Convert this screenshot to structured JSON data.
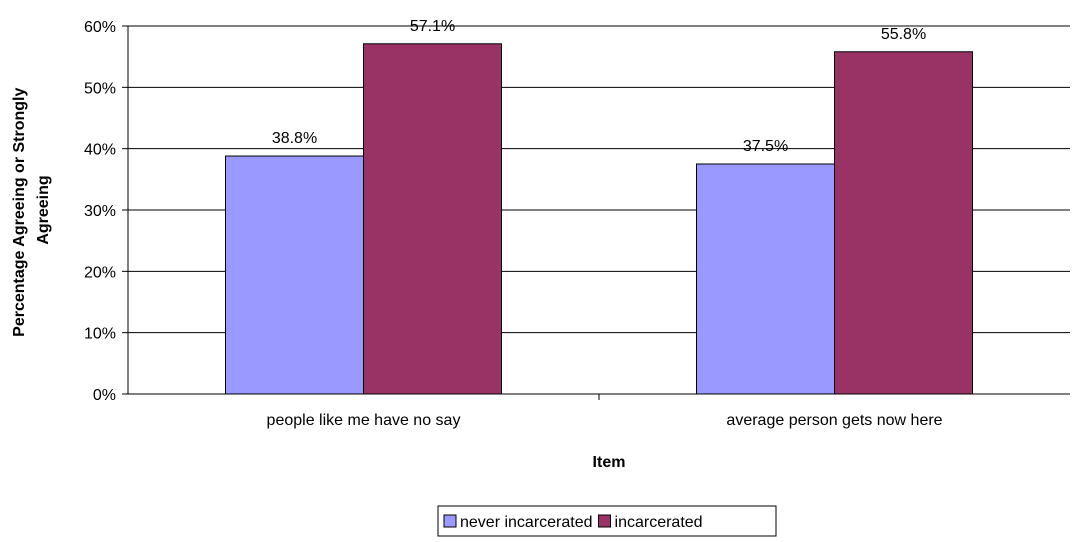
{
  "chart_data": {
    "type": "bar",
    "title": "",
    "xlabel": "Item",
    "ylabel_lines": [
      "Percentage Agreeing or Strongly",
      "Agreeing"
    ],
    "ylim": [
      0,
      60
    ],
    "yticks": [
      0,
      10,
      20,
      30,
      40,
      50,
      60
    ],
    "ytick_format": "{v}%",
    "grid": true,
    "legend_position": "bottom",
    "categories": [
      "people like me have no say",
      "average person gets now here"
    ],
    "series": [
      {
        "name": "never incarcerated",
        "color": "#9999ff",
        "values": [
          38.8,
          37.5
        ],
        "labels": [
          "38.8%",
          "37.5%"
        ]
      },
      {
        "name": "incarcerated",
        "color": "#993366",
        "values": [
          57.1,
          55.8
        ],
        "labels": [
          "57.1%",
          "55.8%"
        ]
      }
    ]
  }
}
